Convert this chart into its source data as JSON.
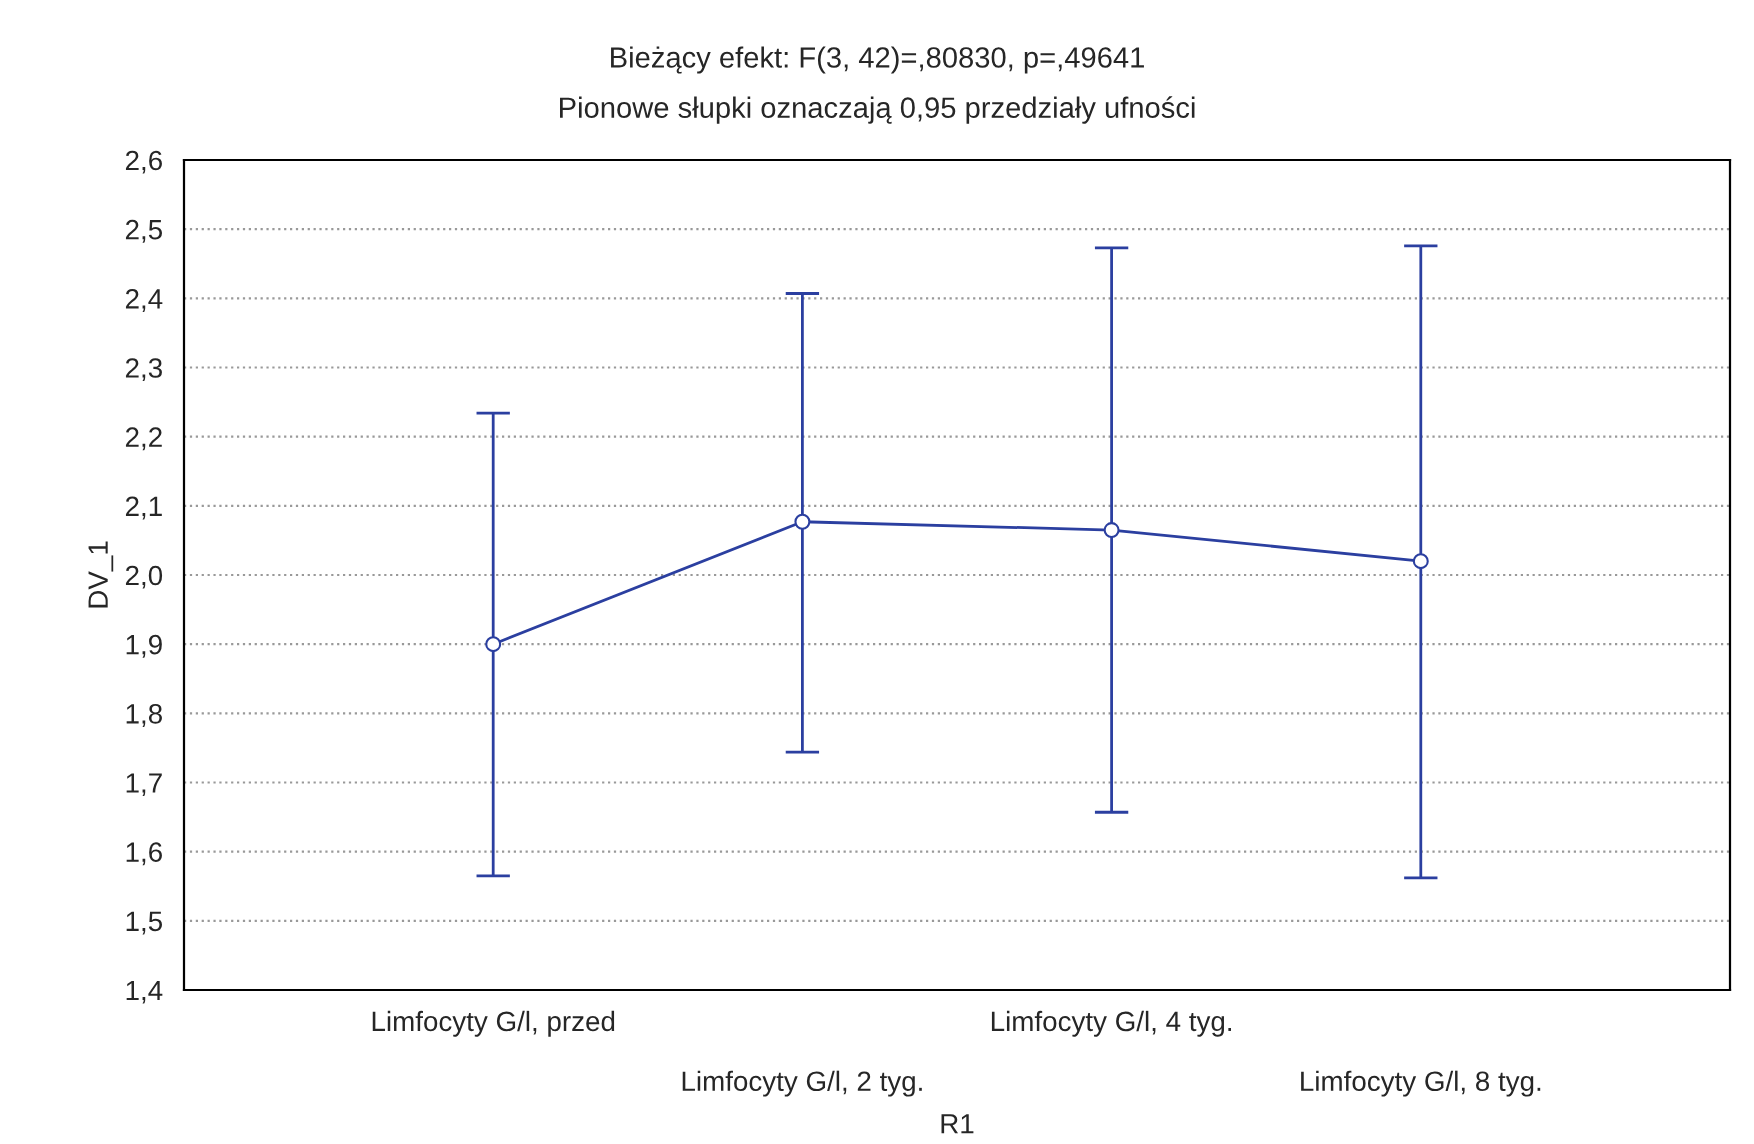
{
  "chart_data": {
    "type": "line",
    "title": "Bieżący efekt: F(3, 42)=,80830, p=,49641",
    "subtitle": "Pionowe słupki oznaczają 0,95 przedziały ufności",
    "xlabel": "R1",
    "ylabel": "DV_1",
    "categories": [
      "Limfocyty G/l, przed",
      "Limfocyty G/l, 2 tyg.",
      "Limfocyty G/l, 4 tyg.",
      "Limfocyty G/l, 8 tyg."
    ],
    "series": [
      {
        "color": "#2b3fa0",
        "values": [
          1.9,
          2.077,
          2.065,
          2.02
        ],
        "errors": [
          [
            1.565,
            2.234
          ],
          [
            1.744,
            2.407
          ],
          [
            1.657,
            2.473
          ],
          [
            1.562,
            2.476
          ]
        ]
      }
    ],
    "ylim": [
      1.4,
      2.6
    ],
    "yticks": [
      {
        "value": 1.4,
        "label": "1,4"
      },
      {
        "value": 1.5,
        "label": "1,5"
      },
      {
        "value": 1.6,
        "label": "1,6"
      },
      {
        "value": 1.7,
        "label": "1,7"
      },
      {
        "value": 1.8,
        "label": "1,8"
      },
      {
        "value": 1.9,
        "label": "1,9"
      },
      {
        "value": 2.0,
        "label": "2,0"
      },
      {
        "value": 2.1,
        "label": "2,1"
      },
      {
        "value": 2.2,
        "label": "2,2"
      },
      {
        "value": 2.3,
        "label": "2,3"
      },
      {
        "value": 2.4,
        "label": "2,4"
      },
      {
        "value": 2.5,
        "label": "2,5"
      },
      {
        "value": 2.6,
        "label": "2,6"
      }
    ],
    "grid": "y",
    "marker": "circle",
    "line_style": "solid"
  }
}
